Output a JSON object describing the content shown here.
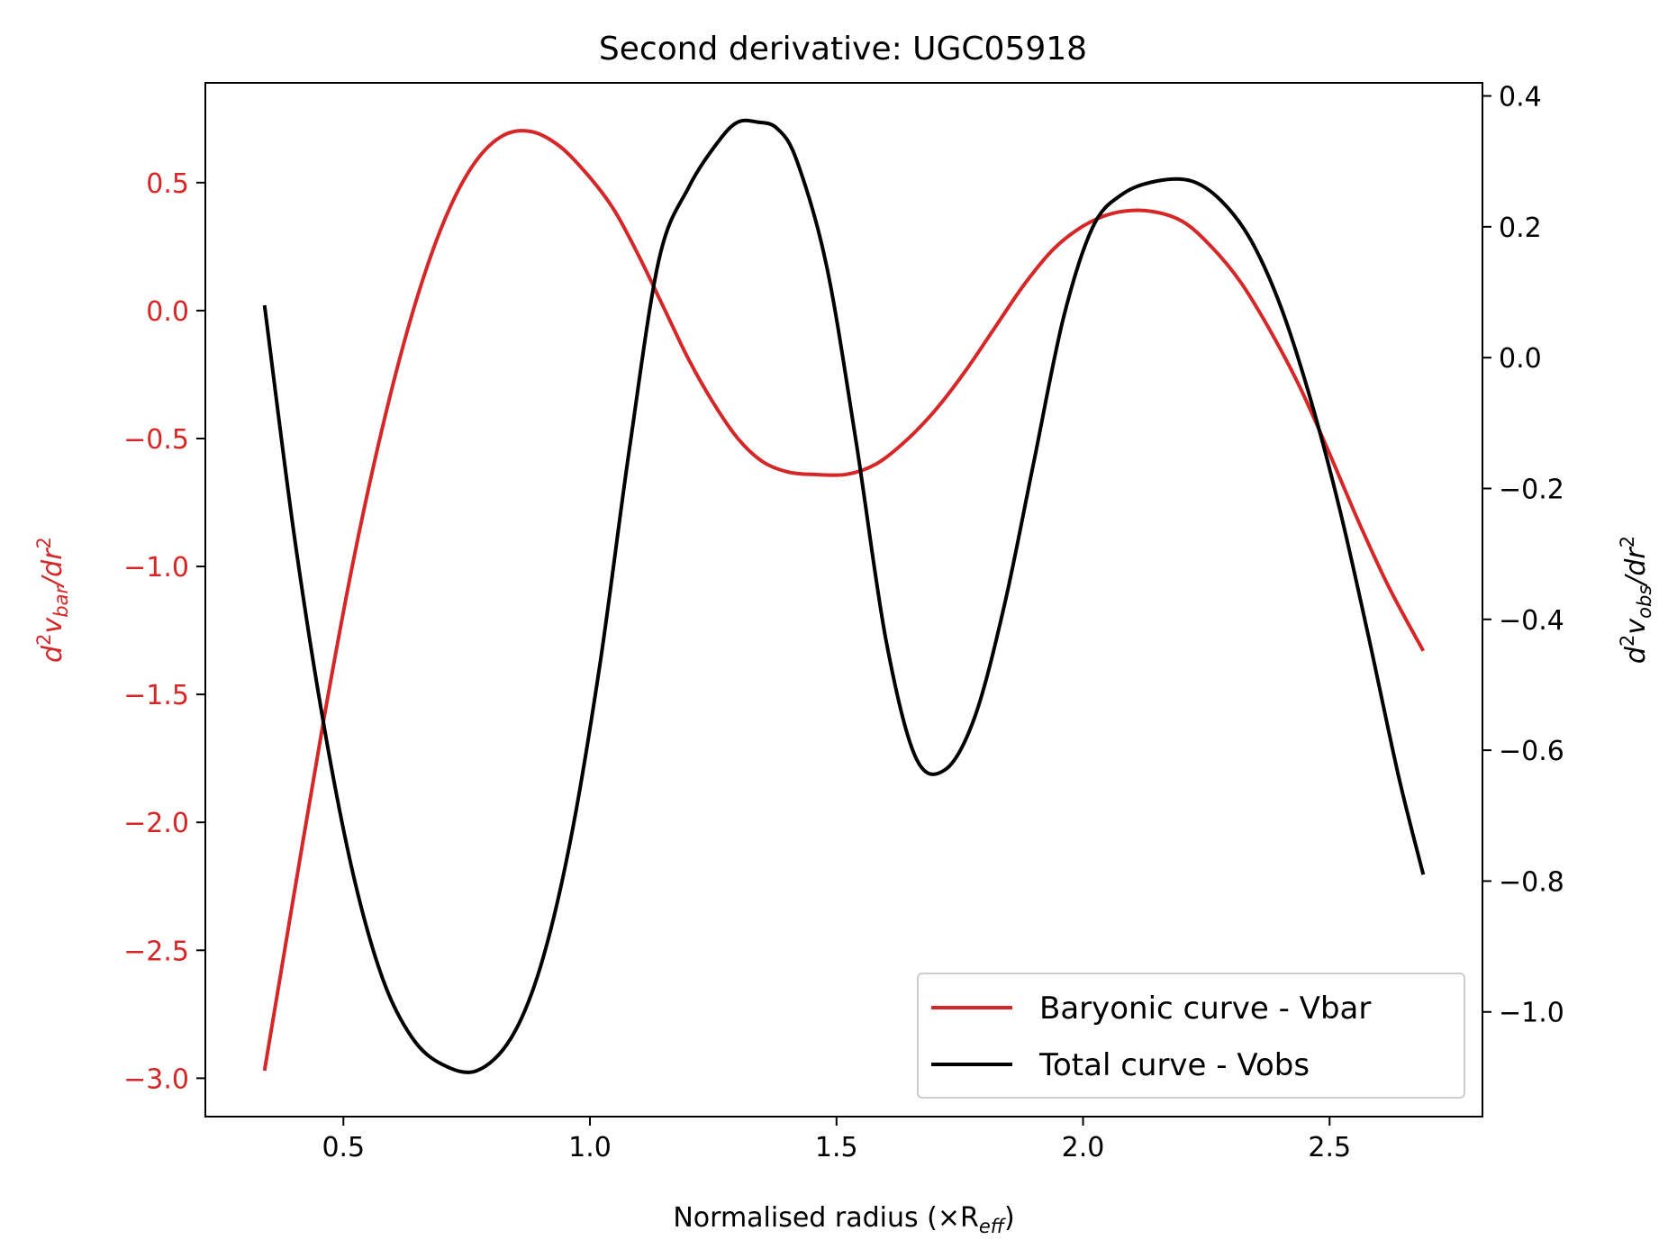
{
  "chart_data": {
    "type": "line",
    "title": "Second derivative: UGC05918",
    "xlabel_main": "Normalised radius (×R",
    "xlabel_sub": "eff",
    "xlabel_tail": ")",
    "ylabel_left_sub": "bar",
    "ylabel_right_sub": "obs",
    "xlim": [
      0.22,
      2.81
    ],
    "ylim_left": [
      -3.15,
      0.89
    ],
    "ylim_right": [
      -1.16,
      0.42
    ],
    "x_ticks": [
      0.5,
      1.0,
      1.5,
      2.0,
      2.5
    ],
    "x_tick_labels": [
      "0.5",
      "1.0",
      "1.5",
      "2.0",
      "2.5"
    ],
    "y_left_ticks": [
      0.5,
      0.0,
      -0.5,
      -1.0,
      -1.5,
      -2.0,
      -2.5,
      -3.0
    ],
    "y_left_tick_labels": [
      "0.5",
      "0.0",
      "−0.5",
      "−1.0",
      "−1.5",
      "−2.0",
      "−2.5",
      "−3.0"
    ],
    "y_right_ticks": [
      0.4,
      0.2,
      0.0,
      -0.2,
      -0.4,
      -0.6,
      -0.8,
      -1.0
    ],
    "y_right_tick_labels": [
      "0.4",
      "0.2",
      "0.0",
      "−0.2",
      "−0.4",
      "−0.6",
      "−0.8",
      "−1.0"
    ],
    "legend_position": "lower-right",
    "series": [
      {
        "name": "Baryonic curve - Vbar",
        "axis": "left",
        "color": "#d62728",
        "x": [
          0.34,
          0.4,
          0.46,
          0.52,
          0.58,
          0.64,
          0.7,
          0.76,
          0.82,
          0.88,
          0.94,
          1.0,
          1.05,
          1.1,
          1.15,
          1.2,
          1.25,
          1.3,
          1.35,
          1.4,
          1.45,
          1.52,
          1.58,
          1.64,
          1.7,
          1.76,
          1.82,
          1.88,
          1.94,
          2.0,
          2.06,
          2.13,
          2.2,
          2.26,
          2.32,
          2.38,
          2.44,
          2.5,
          2.56,
          2.62,
          2.69
        ],
        "y": [
          -2.97,
          -2.28,
          -1.6,
          -0.98,
          -0.45,
          -0.01,
          0.33,
          0.56,
          0.68,
          0.7,
          0.64,
          0.52,
          0.39,
          0.21,
          0.01,
          -0.19,
          -0.36,
          -0.5,
          -0.59,
          -0.63,
          -0.64,
          -0.64,
          -0.6,
          -0.51,
          -0.39,
          -0.24,
          -0.07,
          0.1,
          0.24,
          0.33,
          0.38,
          0.39,
          0.35,
          0.25,
          0.11,
          -0.08,
          -0.3,
          -0.56,
          -0.83,
          -1.08,
          -1.33
        ]
      },
      {
        "name": "Total curve - Vobs",
        "axis": "right",
        "color": "#000000",
        "x": [
          0.34,
          0.4,
          0.46,
          0.52,
          0.58,
          0.64,
          0.7,
          0.77,
          0.84,
          0.9,
          0.96,
          1.02,
          1.08,
          1.14,
          1.2,
          1.26,
          1.3,
          1.34,
          1.38,
          1.42,
          1.48,
          1.54,
          1.6,
          1.66,
          1.72,
          1.78,
          1.84,
          1.9,
          1.96,
          2.02,
          2.08,
          2.15,
          2.22,
          2.28,
          2.34,
          2.4,
          2.46,
          2.52,
          2.58,
          2.64,
          2.69
        ],
        "y": [
          0.08,
          -0.27,
          -0.56,
          -0.79,
          -0.95,
          -1.04,
          -1.08,
          -1.09,
          -1.04,
          -0.93,
          -0.74,
          -0.47,
          -0.14,
          0.15,
          0.26,
          0.33,
          0.36,
          0.36,
          0.35,
          0.3,
          0.14,
          -0.13,
          -0.43,
          -0.61,
          -0.63,
          -0.55,
          -0.38,
          -0.16,
          0.06,
          0.2,
          0.25,
          0.27,
          0.27,
          0.24,
          0.18,
          0.08,
          -0.06,
          -0.23,
          -0.43,
          -0.64,
          -0.79
        ]
      }
    ]
  }
}
